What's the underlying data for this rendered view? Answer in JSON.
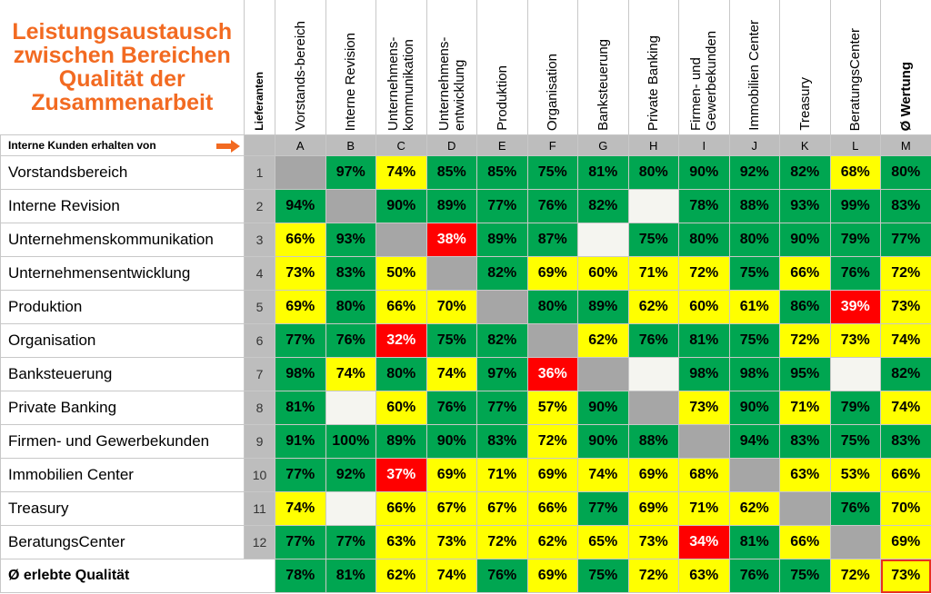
{
  "title": "Leistungsaustausch zwischen Bereichen Qualität der Zusammenarbeit",
  "lieferanten_label": "Lieferanten",
  "interne_kunden_label": "Interne Kunden erhalten von",
  "columns": [
    {
      "letter": "A",
      "label": "Vorstands-­bereich"
    },
    {
      "letter": "B",
      "label": "Interne Revision"
    },
    {
      "letter": "C",
      "label": "Unternehmens-kommunikation"
    },
    {
      "letter": "D",
      "label": "Unternehmens-entwicklung"
    },
    {
      "letter": "E",
      "label": "Produktion"
    },
    {
      "letter": "F",
      "label": "Organisation"
    },
    {
      "letter": "G",
      "label": "Banksteuerung"
    },
    {
      "letter": "H",
      "label": "Private Banking"
    },
    {
      "letter": "I",
      "label": "Firmen- und Gewerbekunden"
    },
    {
      "letter": "J",
      "label": "Immobilien Center"
    },
    {
      "letter": "K",
      "label": "Treasury"
    },
    {
      "letter": "L",
      "label": "BeratungsCenter"
    },
    {
      "letter": "M",
      "label": "Ø Wertung"
    }
  ],
  "rows": [
    {
      "name": "Vorstandsbereich",
      "num": "1",
      "cells": [
        [
          "",
          "gray"
        ],
        [
          "97%",
          "g"
        ],
        [
          "74%",
          "y"
        ],
        [
          "85%",
          "g"
        ],
        [
          "85%",
          "g"
        ],
        [
          "75%",
          "g"
        ],
        [
          "81%",
          "g"
        ],
        [
          "80%",
          "g"
        ],
        [
          "90%",
          "g"
        ],
        [
          "92%",
          "g"
        ],
        [
          "82%",
          "g"
        ],
        [
          "68%",
          "y"
        ],
        [
          "80%",
          "g"
        ]
      ]
    },
    {
      "name": "Interne Revision",
      "num": "2",
      "cells": [
        [
          "94%",
          "g"
        ],
        [
          "",
          "gray"
        ],
        [
          "90%",
          "g"
        ],
        [
          "89%",
          "g"
        ],
        [
          "77%",
          "g"
        ],
        [
          "76%",
          "g"
        ],
        [
          "82%",
          "g"
        ],
        [
          "",
          "blank"
        ],
        [
          "78%",
          "g"
        ],
        [
          "88%",
          "g"
        ],
        [
          "93%",
          "g"
        ],
        [
          "99%",
          "g"
        ],
        [
          "83%",
          "g"
        ]
      ]
    },
    {
      "name": "Unternehmenskommunikation",
      "num": "3",
      "cells": [
        [
          "66%",
          "y"
        ],
        [
          "93%",
          "g"
        ],
        [
          "",
          "gray"
        ],
        [
          "38%",
          "r"
        ],
        [
          "89%",
          "g"
        ],
        [
          "87%",
          "g"
        ],
        [
          "",
          "blank"
        ],
        [
          "75%",
          "g"
        ],
        [
          "80%",
          "g"
        ],
        [
          "80%",
          "g"
        ],
        [
          "90%",
          "g"
        ],
        [
          "79%",
          "g"
        ],
        [
          "77%",
          "g"
        ]
      ]
    },
    {
      "name": "Unternehmensentwicklung",
      "num": "4",
      "cells": [
        [
          "73%",
          "y"
        ],
        [
          "83%",
          "g"
        ],
        [
          "50%",
          "y"
        ],
        [
          "",
          "gray"
        ],
        [
          "82%",
          "g"
        ],
        [
          "69%",
          "y"
        ],
        [
          "60%",
          "y"
        ],
        [
          "71%",
          "y"
        ],
        [
          "72%",
          "y"
        ],
        [
          "75%",
          "g"
        ],
        [
          "66%",
          "y"
        ],
        [
          "76%",
          "g"
        ],
        [
          "72%",
          "y"
        ]
      ]
    },
    {
      "name": "Produktion",
      "num": "5",
      "cells": [
        [
          "69%",
          "y"
        ],
        [
          "80%",
          "g"
        ],
        [
          "66%",
          "y"
        ],
        [
          "70%",
          "y"
        ],
        [
          "",
          "gray"
        ],
        [
          "80%",
          "g"
        ],
        [
          "89%",
          "g"
        ],
        [
          "62%",
          "y"
        ],
        [
          "60%",
          "y"
        ],
        [
          "61%",
          "y"
        ],
        [
          "86%",
          "g"
        ],
        [
          "39%",
          "r"
        ],
        [
          "73%",
          "y"
        ]
      ]
    },
    {
      "name": "Organisation",
      "num": "6",
      "cells": [
        [
          "77%",
          "g"
        ],
        [
          "76%",
          "g"
        ],
        [
          "32%",
          "r"
        ],
        [
          "75%",
          "g"
        ],
        [
          "82%",
          "g"
        ],
        [
          "",
          "gray"
        ],
        [
          "62%",
          "y"
        ],
        [
          "76%",
          "g"
        ],
        [
          "81%",
          "g"
        ],
        [
          "75%",
          "g"
        ],
        [
          "72%",
          "y"
        ],
        [
          "73%",
          "y"
        ],
        [
          "74%",
          "y"
        ]
      ]
    },
    {
      "name": "Banksteuerung",
      "num": "7",
      "cells": [
        [
          "98%",
          "g"
        ],
        [
          "74%",
          "y"
        ],
        [
          "80%",
          "g"
        ],
        [
          "74%",
          "y"
        ],
        [
          "97%",
          "g"
        ],
        [
          "36%",
          "r"
        ],
        [
          "",
          "gray"
        ],
        [
          "",
          "blank"
        ],
        [
          "98%",
          "g"
        ],
        [
          "98%",
          "g"
        ],
        [
          "95%",
          "g"
        ],
        [
          "",
          "blank"
        ],
        [
          "82%",
          "g"
        ]
      ]
    },
    {
      "name": "Private Banking",
      "num": "8",
      "cells": [
        [
          "81%",
          "g"
        ],
        [
          "",
          "blank"
        ],
        [
          "60%",
          "y"
        ],
        [
          "76%",
          "g"
        ],
        [
          "77%",
          "g"
        ],
        [
          "57%",
          "y"
        ],
        [
          "90%",
          "g"
        ],
        [
          "",
          "gray"
        ],
        [
          "73%",
          "y"
        ],
        [
          "90%",
          "g"
        ],
        [
          "71%",
          "y"
        ],
        [
          "79%",
          "g"
        ],
        [
          "74%",
          "y"
        ]
      ]
    },
    {
      "name": "Firmen- und Gewerbekunden",
      "num": "9",
      "cells": [
        [
          "91%",
          "g"
        ],
        [
          "100%",
          "g"
        ],
        [
          "89%",
          "g"
        ],
        [
          "90%",
          "g"
        ],
        [
          "83%",
          "g"
        ],
        [
          "72%",
          "y"
        ],
        [
          "90%",
          "g"
        ],
        [
          "88%",
          "g"
        ],
        [
          "",
          "gray"
        ],
        [
          "94%",
          "g"
        ],
        [
          "83%",
          "g"
        ],
        [
          "75%",
          "g"
        ],
        [
          "83%",
          "g"
        ]
      ]
    },
    {
      "name": "Immobilien Center",
      "num": "10",
      "cells": [
        [
          "77%",
          "g"
        ],
        [
          "92%",
          "g"
        ],
        [
          "37%",
          "r"
        ],
        [
          "69%",
          "y"
        ],
        [
          "71%",
          "y"
        ],
        [
          "69%",
          "y"
        ],
        [
          "74%",
          "y"
        ],
        [
          "69%",
          "y"
        ],
        [
          "68%",
          "y"
        ],
        [
          "",
          "gray"
        ],
        [
          "63%",
          "y"
        ],
        [
          "53%",
          "y"
        ],
        [
          "66%",
          "y"
        ]
      ]
    },
    {
      "name": "Treasury",
      "num": "11",
      "cells": [
        [
          "74%",
          "y"
        ],
        [
          "",
          "blank"
        ],
        [
          "66%",
          "y"
        ],
        [
          "67%",
          "y"
        ],
        [
          "67%",
          "y"
        ],
        [
          "66%",
          "y"
        ],
        [
          "77%",
          "g"
        ],
        [
          "69%",
          "y"
        ],
        [
          "71%",
          "y"
        ],
        [
          "62%",
          "y"
        ],
        [
          "",
          "gray"
        ],
        [
          "76%",
          "g"
        ],
        [
          "70%",
          "y"
        ]
      ]
    },
    {
      "name": "BeratungsCenter",
      "num": "12",
      "cells": [
        [
          "77%",
          "g"
        ],
        [
          "77%",
          "g"
        ],
        [
          "63%",
          "y"
        ],
        [
          "73%",
          "y"
        ],
        [
          "72%",
          "y"
        ],
        [
          "62%",
          "y"
        ],
        [
          "65%",
          "y"
        ],
        [
          "73%",
          "y"
        ],
        [
          "34%",
          "r"
        ],
        [
          "81%",
          "g"
        ],
        [
          "66%",
          "y"
        ],
        [
          "",
          "gray"
        ],
        [
          "69%",
          "y"
        ]
      ]
    }
  ],
  "footer": {
    "label": "Ø erlebte Qualität",
    "cells": [
      [
        "78%",
        "g"
      ],
      [
        "81%",
        "g"
      ],
      [
        "62%",
        "y"
      ],
      [
        "74%",
        "y"
      ],
      [
        "76%",
        "g"
      ],
      [
        "69%",
        "y"
      ],
      [
        "75%",
        "g"
      ],
      [
        "72%",
        "y"
      ],
      [
        "63%",
        "y"
      ],
      [
        "76%",
        "g"
      ],
      [
        "75%",
        "g"
      ],
      [
        "72%",
        "y"
      ],
      [
        "73%",
        "y"
      ]
    ]
  },
  "colors": {
    "green": "#00a651",
    "yellow": "#ffff00",
    "red": "#ff0000",
    "gray": "#a6a6a6",
    "accent": "#f26a21"
  }
}
